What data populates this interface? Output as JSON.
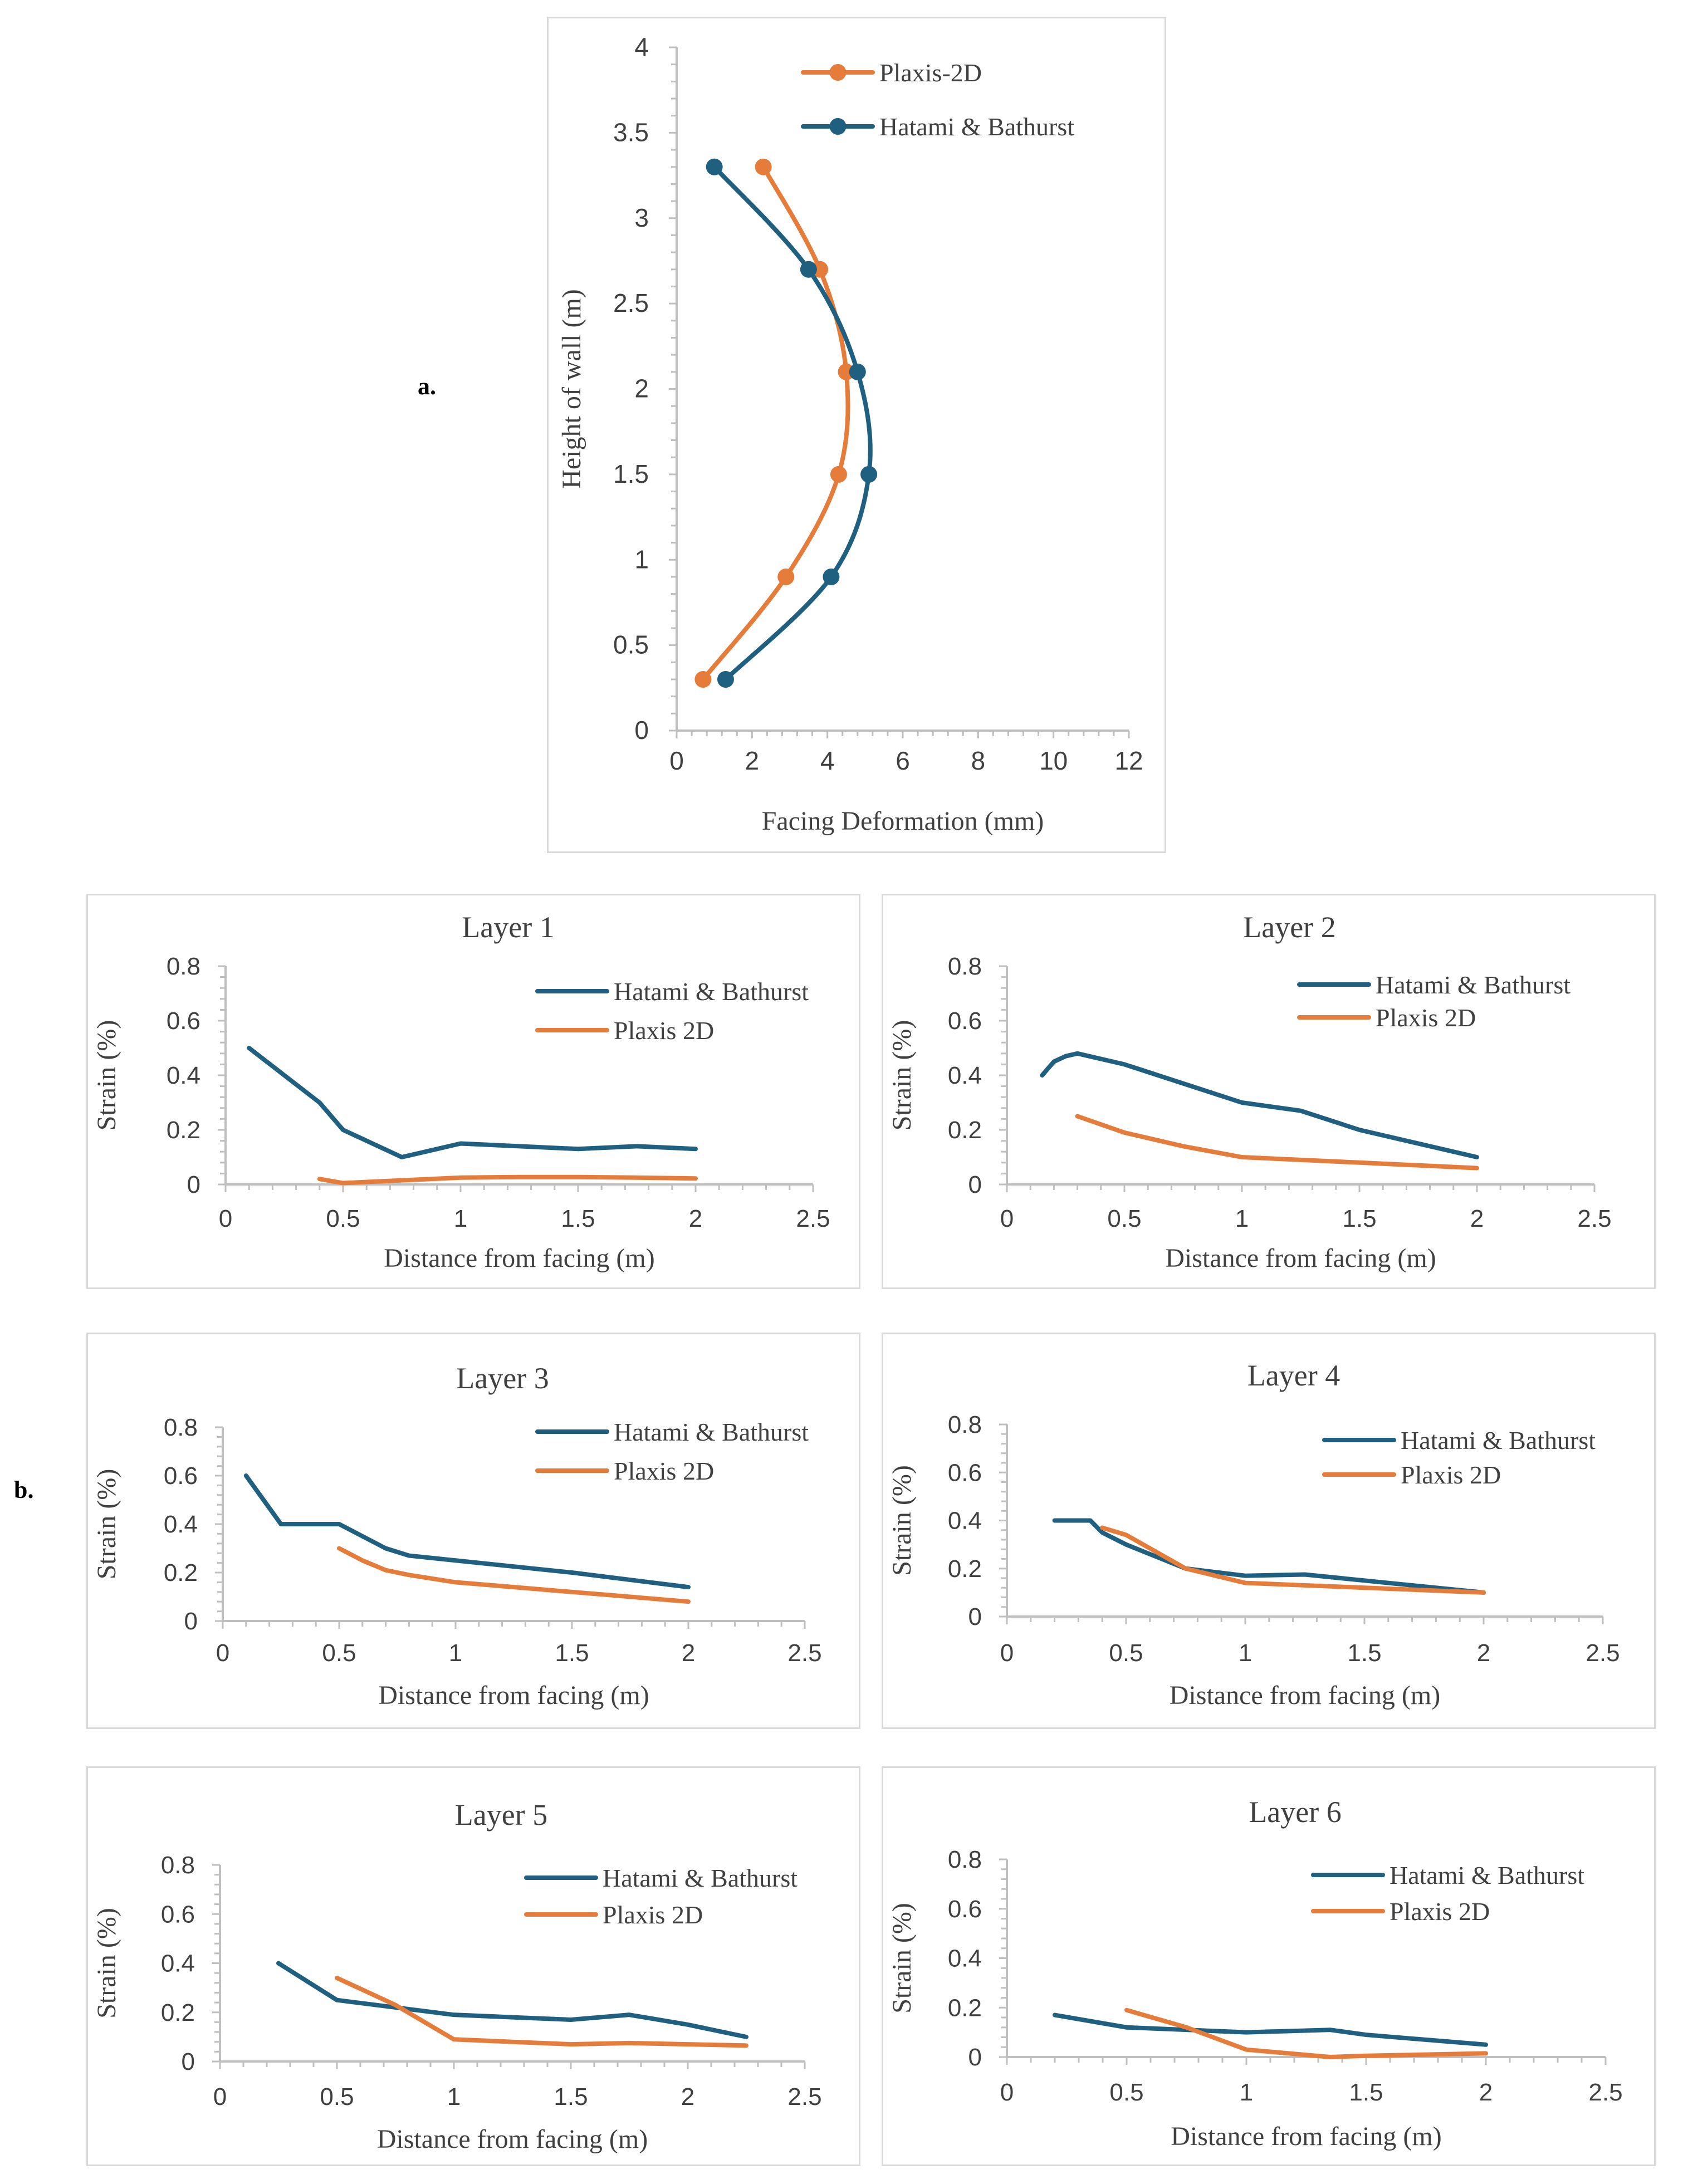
{
  "labels": {
    "a": "a.",
    "b": "b."
  },
  "colors": {
    "hatami": "#1f5f7f",
    "plaxis": "#e57c3a",
    "axis": "#bfbfbf",
    "text": "#404040"
  },
  "chart_data": [
    {
      "id": "a",
      "type": "line",
      "markers": true,
      "orientation": "profile",
      "title": "",
      "xlabel": "Facing Deformation (mm)",
      "ylabel": "Height of wall (m)",
      "xlim": [
        0,
        12
      ],
      "ylim": [
        0,
        4
      ],
      "xticks": [
        0,
        2,
        4,
        6,
        8,
        10,
        12
      ],
      "yticks": [
        0,
        0.5,
        1,
        1.5,
        2,
        2.5,
        3,
        3.5,
        4
      ],
      "xtick_labels": [
        "0",
        "2",
        "4",
        "6",
        "8",
        "10",
        "12"
      ],
      "ytick_labels": [
        "0",
        "0.5",
        "1",
        "1.5",
        "2",
        "2.5",
        "3",
        "3.5",
        "4"
      ],
      "legend_position": "top-right",
      "series": [
        {
          "name": "Plaxis-2D",
          "color": "#e57c3a",
          "x": [
            0.7,
            2.9,
            4.3,
            4.5,
            3.8,
            2.3
          ],
          "y": [
            0.3,
            0.9,
            1.5,
            2.1,
            2.7,
            3.3
          ]
        },
        {
          "name": "Hatami & Bathurst",
          "color": "#1f5f7f",
          "x": [
            1.3,
            4.1,
            5.1,
            4.8,
            3.5,
            1.0
          ],
          "y": [
            0.3,
            0.9,
            1.5,
            2.1,
            2.7,
            3.3
          ]
        }
      ]
    },
    {
      "id": "l1",
      "type": "line",
      "title": "Layer 1",
      "xlabel": "Distance from facing (m)",
      "ylabel": "Strain  (%)",
      "xlim": [
        0,
        2.5
      ],
      "ylim": [
        0,
        0.8
      ],
      "xticks": [
        0,
        0.5,
        1,
        1.5,
        2,
        2.5
      ],
      "yticks": [
        0,
        0.2,
        0.4,
        0.6,
        0.8
      ],
      "xtick_labels": [
        "0",
        "0.5",
        "1",
        "1.5",
        "2",
        "2.5"
      ],
      "ytick_labels": [
        "0",
        "0.2",
        "0.4",
        "0.6",
        "0.8"
      ],
      "legend_position": "top-right",
      "series": [
        {
          "name": "Hatami & Bathurst",
          "color": "#1f5f7f",
          "x": [
            0.1,
            0.25,
            0.4,
            0.5,
            0.75,
            1.0,
            1.25,
            1.5,
            1.75,
            2.0
          ],
          "y": [
            0.5,
            0.4,
            0.3,
            0.2,
            0.1,
            0.15,
            0.14,
            0.13,
            0.14,
            0.13
          ]
        },
        {
          "name": "Plaxis 2D",
          "color": "#e57c3a",
          "x": [
            0.4,
            0.5,
            0.75,
            1.0,
            1.25,
            1.5,
            1.75,
            2.0
          ],
          "y": [
            0.02,
            0.005,
            0.015,
            0.025,
            0.027,
            0.027,
            0.025,
            0.022
          ]
        }
      ]
    },
    {
      "id": "l2",
      "type": "line",
      "title": "Layer 2",
      "xlabel": "Distance from facing (m)",
      "ylabel": "Strain  (%)",
      "xlim": [
        0,
        2.5
      ],
      "ylim": [
        0,
        0.8
      ],
      "xticks": [
        0,
        0.5,
        1,
        1.5,
        2,
        2.5
      ],
      "yticks": [
        0,
        0.2,
        0.4,
        0.6,
        0.8
      ],
      "xtick_labels": [
        "0",
        "0.5",
        "1",
        "1.5",
        "2",
        "2.5"
      ],
      "ytick_labels": [
        "0",
        "0.2",
        "0.4",
        "0.6",
        "0.8"
      ],
      "legend_position": "top-right",
      "series": [
        {
          "name": "Hatami & Bathurst",
          "color": "#1f5f7f",
          "x": [
            0.15,
            0.2,
            0.25,
            0.3,
            0.5,
            0.75,
            1.0,
            1.25,
            1.5,
            2.0
          ],
          "y": [
            0.4,
            0.45,
            0.47,
            0.48,
            0.44,
            0.37,
            0.3,
            0.27,
            0.2,
            0.1
          ]
        },
        {
          "name": "Plaxis 2D",
          "color": "#e57c3a",
          "x": [
            0.3,
            0.5,
            0.6,
            0.75,
            1.0,
            1.25,
            1.5,
            2.0
          ],
          "y": [
            0.25,
            0.19,
            0.17,
            0.14,
            0.1,
            0.09,
            0.08,
            0.06
          ]
        }
      ]
    },
    {
      "id": "l3",
      "type": "line",
      "title": "Layer 3",
      "xlabel": "Distance from facing (m)",
      "ylabel": "Strain  (%)",
      "xlim": [
        0,
        2.5
      ],
      "ylim": [
        0,
        0.8
      ],
      "xticks": [
        0,
        0.5,
        1,
        1.5,
        2,
        2.5
      ],
      "yticks": [
        0,
        0.2,
        0.4,
        0.6,
        0.8
      ],
      "xtick_labels": [
        "0",
        "0.5",
        "1",
        "1.5",
        "2",
        "2.5"
      ],
      "ytick_labels": [
        "0",
        "0.2",
        "0.4",
        "0.6",
        "0.8"
      ],
      "legend_position": "top-right",
      "series": [
        {
          "name": "Hatami & Bathurst",
          "color": "#1f5f7f",
          "x": [
            0.1,
            0.25,
            0.5,
            0.6,
            0.7,
            0.8,
            1.0,
            1.5,
            2.0
          ],
          "y": [
            0.6,
            0.4,
            0.4,
            0.35,
            0.3,
            0.27,
            0.25,
            0.2,
            0.14
          ]
        },
        {
          "name": "Plaxis 2D",
          "color": "#e57c3a",
          "x": [
            0.5,
            0.6,
            0.7,
            0.8,
            1.0,
            1.5,
            2.0
          ],
          "y": [
            0.3,
            0.25,
            0.21,
            0.19,
            0.16,
            0.12,
            0.08
          ]
        }
      ]
    },
    {
      "id": "l4",
      "type": "line",
      "title": "Layer 4",
      "xlabel": "Distance from facing (m)",
      "ylabel": "Strain  (%)",
      "xlim": [
        0,
        2.5
      ],
      "ylim": [
        0,
        0.8
      ],
      "xticks": [
        0,
        0.5,
        1,
        1.5,
        2,
        2.5
      ],
      "yticks": [
        0,
        0.2,
        0.4,
        0.6,
        0.8
      ],
      "xtick_labels": [
        "0",
        "0.5",
        "1",
        "1.5",
        "2",
        "2.5"
      ],
      "ytick_labels": [
        "0",
        "0.2",
        "0.4",
        "0.6",
        "0.8"
      ],
      "legend_position": "top-right",
      "series": [
        {
          "name": "Hatami & Bathurst",
          "color": "#1f5f7f",
          "x": [
            0.2,
            0.35,
            0.4,
            0.5,
            0.75,
            1.0,
            1.25,
            1.5,
            2.0
          ],
          "y": [
            0.4,
            0.4,
            0.35,
            0.3,
            0.2,
            0.17,
            0.175,
            0.15,
            0.1
          ]
        },
        {
          "name": "Plaxis 2D",
          "color": "#e57c3a",
          "x": [
            0.4,
            0.5,
            0.75,
            1.0,
            1.25,
            1.5,
            2.0
          ],
          "y": [
            0.37,
            0.34,
            0.2,
            0.14,
            0.13,
            0.12,
            0.1
          ]
        }
      ]
    },
    {
      "id": "l5",
      "type": "line",
      "title": "Layer 5",
      "xlabel": "Distance from facing (m)",
      "ylabel": "Strain  (%)",
      "xlim": [
        0,
        2.5
      ],
      "ylim": [
        0,
        0.8
      ],
      "xticks": [
        0,
        0.5,
        1,
        1.5,
        2,
        2.5
      ],
      "yticks": [
        0,
        0.2,
        0.4,
        0.6,
        0.8
      ],
      "xtick_labels": [
        "0",
        "0.5",
        "1",
        "1.5",
        "2",
        "2.5"
      ],
      "ytick_labels": [
        "0",
        "0.2",
        "0.4",
        "0.6",
        "0.8"
      ],
      "legend_position": "top-right",
      "series": [
        {
          "name": "Hatami & Bathurst",
          "color": "#1f5f7f",
          "x": [
            0.25,
            0.5,
            0.75,
            1.0,
            1.25,
            1.5,
            1.75,
            2.0,
            2.25
          ],
          "y": [
            0.4,
            0.25,
            0.22,
            0.19,
            0.18,
            0.17,
            0.19,
            0.15,
            0.1
          ]
        },
        {
          "name": "Plaxis 2D",
          "color": "#e57c3a",
          "x": [
            0.5,
            0.75,
            1.0,
            1.25,
            1.5,
            1.75,
            2.0,
            2.25
          ],
          "y": [
            0.34,
            0.23,
            0.09,
            0.08,
            0.07,
            0.075,
            0.07,
            0.065
          ]
        }
      ]
    },
    {
      "id": "l6",
      "type": "line",
      "title": "Layer 6",
      "xlabel": "Distance from facing (m)",
      "ylabel": "Strain  (%)",
      "xlim": [
        0,
        2.5
      ],
      "ylim": [
        0,
        0.8
      ],
      "xticks": [
        0,
        0.5,
        1,
        1.5,
        2,
        2.5
      ],
      "yticks": [
        0,
        0.2,
        0.4,
        0.6,
        0.8
      ],
      "xtick_labels": [
        "0",
        "0.5",
        "1",
        "1.5",
        "2",
        "2.5"
      ],
      "ytick_labels": [
        "0",
        "0.2",
        "0.4",
        "0.6",
        "0.8"
      ],
      "legend_position": "top-right",
      "series": [
        {
          "name": "Hatami & Bathurst",
          "color": "#1f5f7f",
          "x": [
            0.2,
            0.5,
            0.75,
            1.0,
            1.35,
            1.5,
            2.0
          ],
          "y": [
            0.17,
            0.12,
            0.11,
            0.1,
            0.11,
            0.09,
            0.05
          ]
        },
        {
          "name": "Plaxis 2D",
          "color": "#e57c3a",
          "x": [
            0.5,
            0.75,
            1.0,
            1.35,
            1.5,
            2.0
          ],
          "y": [
            0.19,
            0.12,
            0.03,
            0.0,
            0.005,
            0.015
          ]
        }
      ]
    }
  ]
}
